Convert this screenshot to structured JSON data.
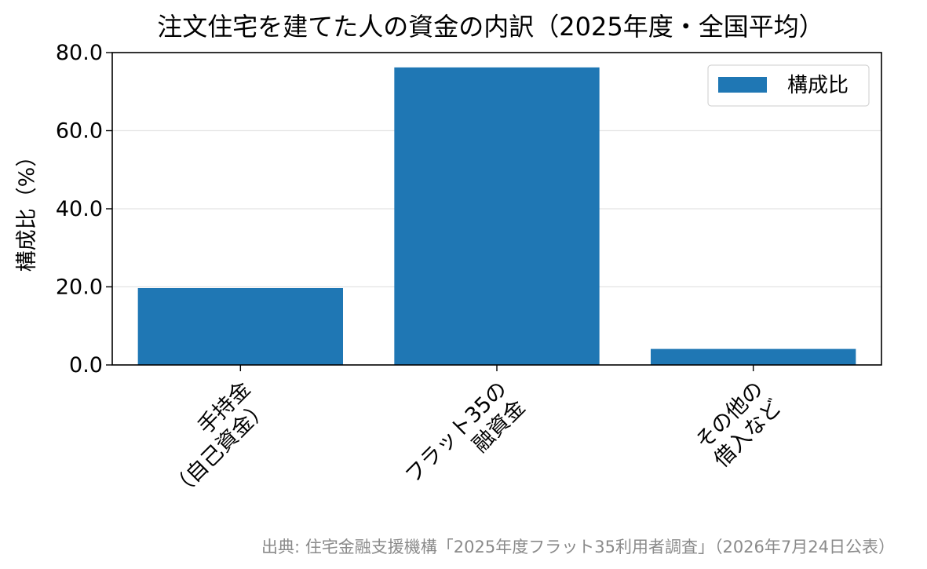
{
  "chart_data": {
    "type": "bar",
    "title": "注文住宅を建てた人の資金の内訳（2025年度・全国平均）",
    "ylabel": "構成比（%）",
    "xlabel": "",
    "categories": [
      [
        "手持金",
        "（自己資金）"
      ],
      [
        "フラット35の",
        "融資金"
      ],
      [
        "その他の",
        "借入など"
      ]
    ],
    "series": [
      {
        "name": "構成比",
        "values": [
          19.7,
          76.2,
          4.1
        ],
        "color": "#1f77b4"
      }
    ],
    "ylim": [
      0,
      80
    ],
    "yticks": [
      "0.0",
      "20.0",
      "40.0",
      "60.0",
      "80.0"
    ],
    "grid": "horizontal",
    "legend_position": "top-right"
  },
  "source": "出典: 住宅金融支援機構「2025年度フラット35利用者調査」（2026年7月24日公表）"
}
